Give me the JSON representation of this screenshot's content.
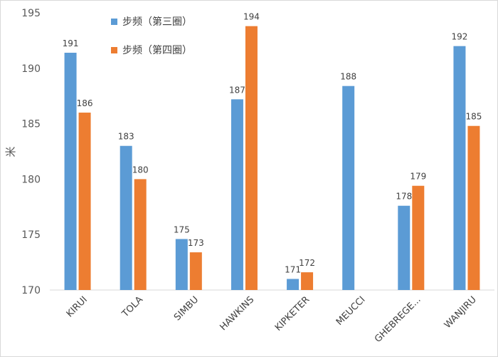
{
  "chart_data": {
    "type": "bar",
    "ylabel": "米",
    "ylim": [
      170,
      195
    ],
    "yticks": [
      170,
      175,
      180,
      185,
      190,
      195
    ],
    "grid": false,
    "legend_position": "top-left",
    "categories": [
      "KIRUI",
      "TOLA",
      "SIMBU",
      "HAWKINS",
      "KIPKETER",
      "MEUCCI",
      "GHEBREGE...",
      "WANJIRU"
    ],
    "series": [
      {
        "name": "步频（第三圈）",
        "color": "#5b9bd5",
        "values": [
          191.4,
          183,
          174.6,
          187.2,
          171,
          188.4,
          177.6,
          192
        ],
        "labels": [
          "191",
          "183",
          "175",
          "187",
          "171",
          "188",
          "178",
          "192"
        ]
      },
      {
        "name": "步频（第四圈）",
        "color": "#ed7d31",
        "values": [
          186,
          180,
          173.4,
          193.8,
          171.6,
          null,
          179.4,
          184.8
        ],
        "labels": [
          "186",
          "180",
          "173",
          "194",
          "172",
          "",
          "179",
          "185"
        ]
      }
    ]
  }
}
